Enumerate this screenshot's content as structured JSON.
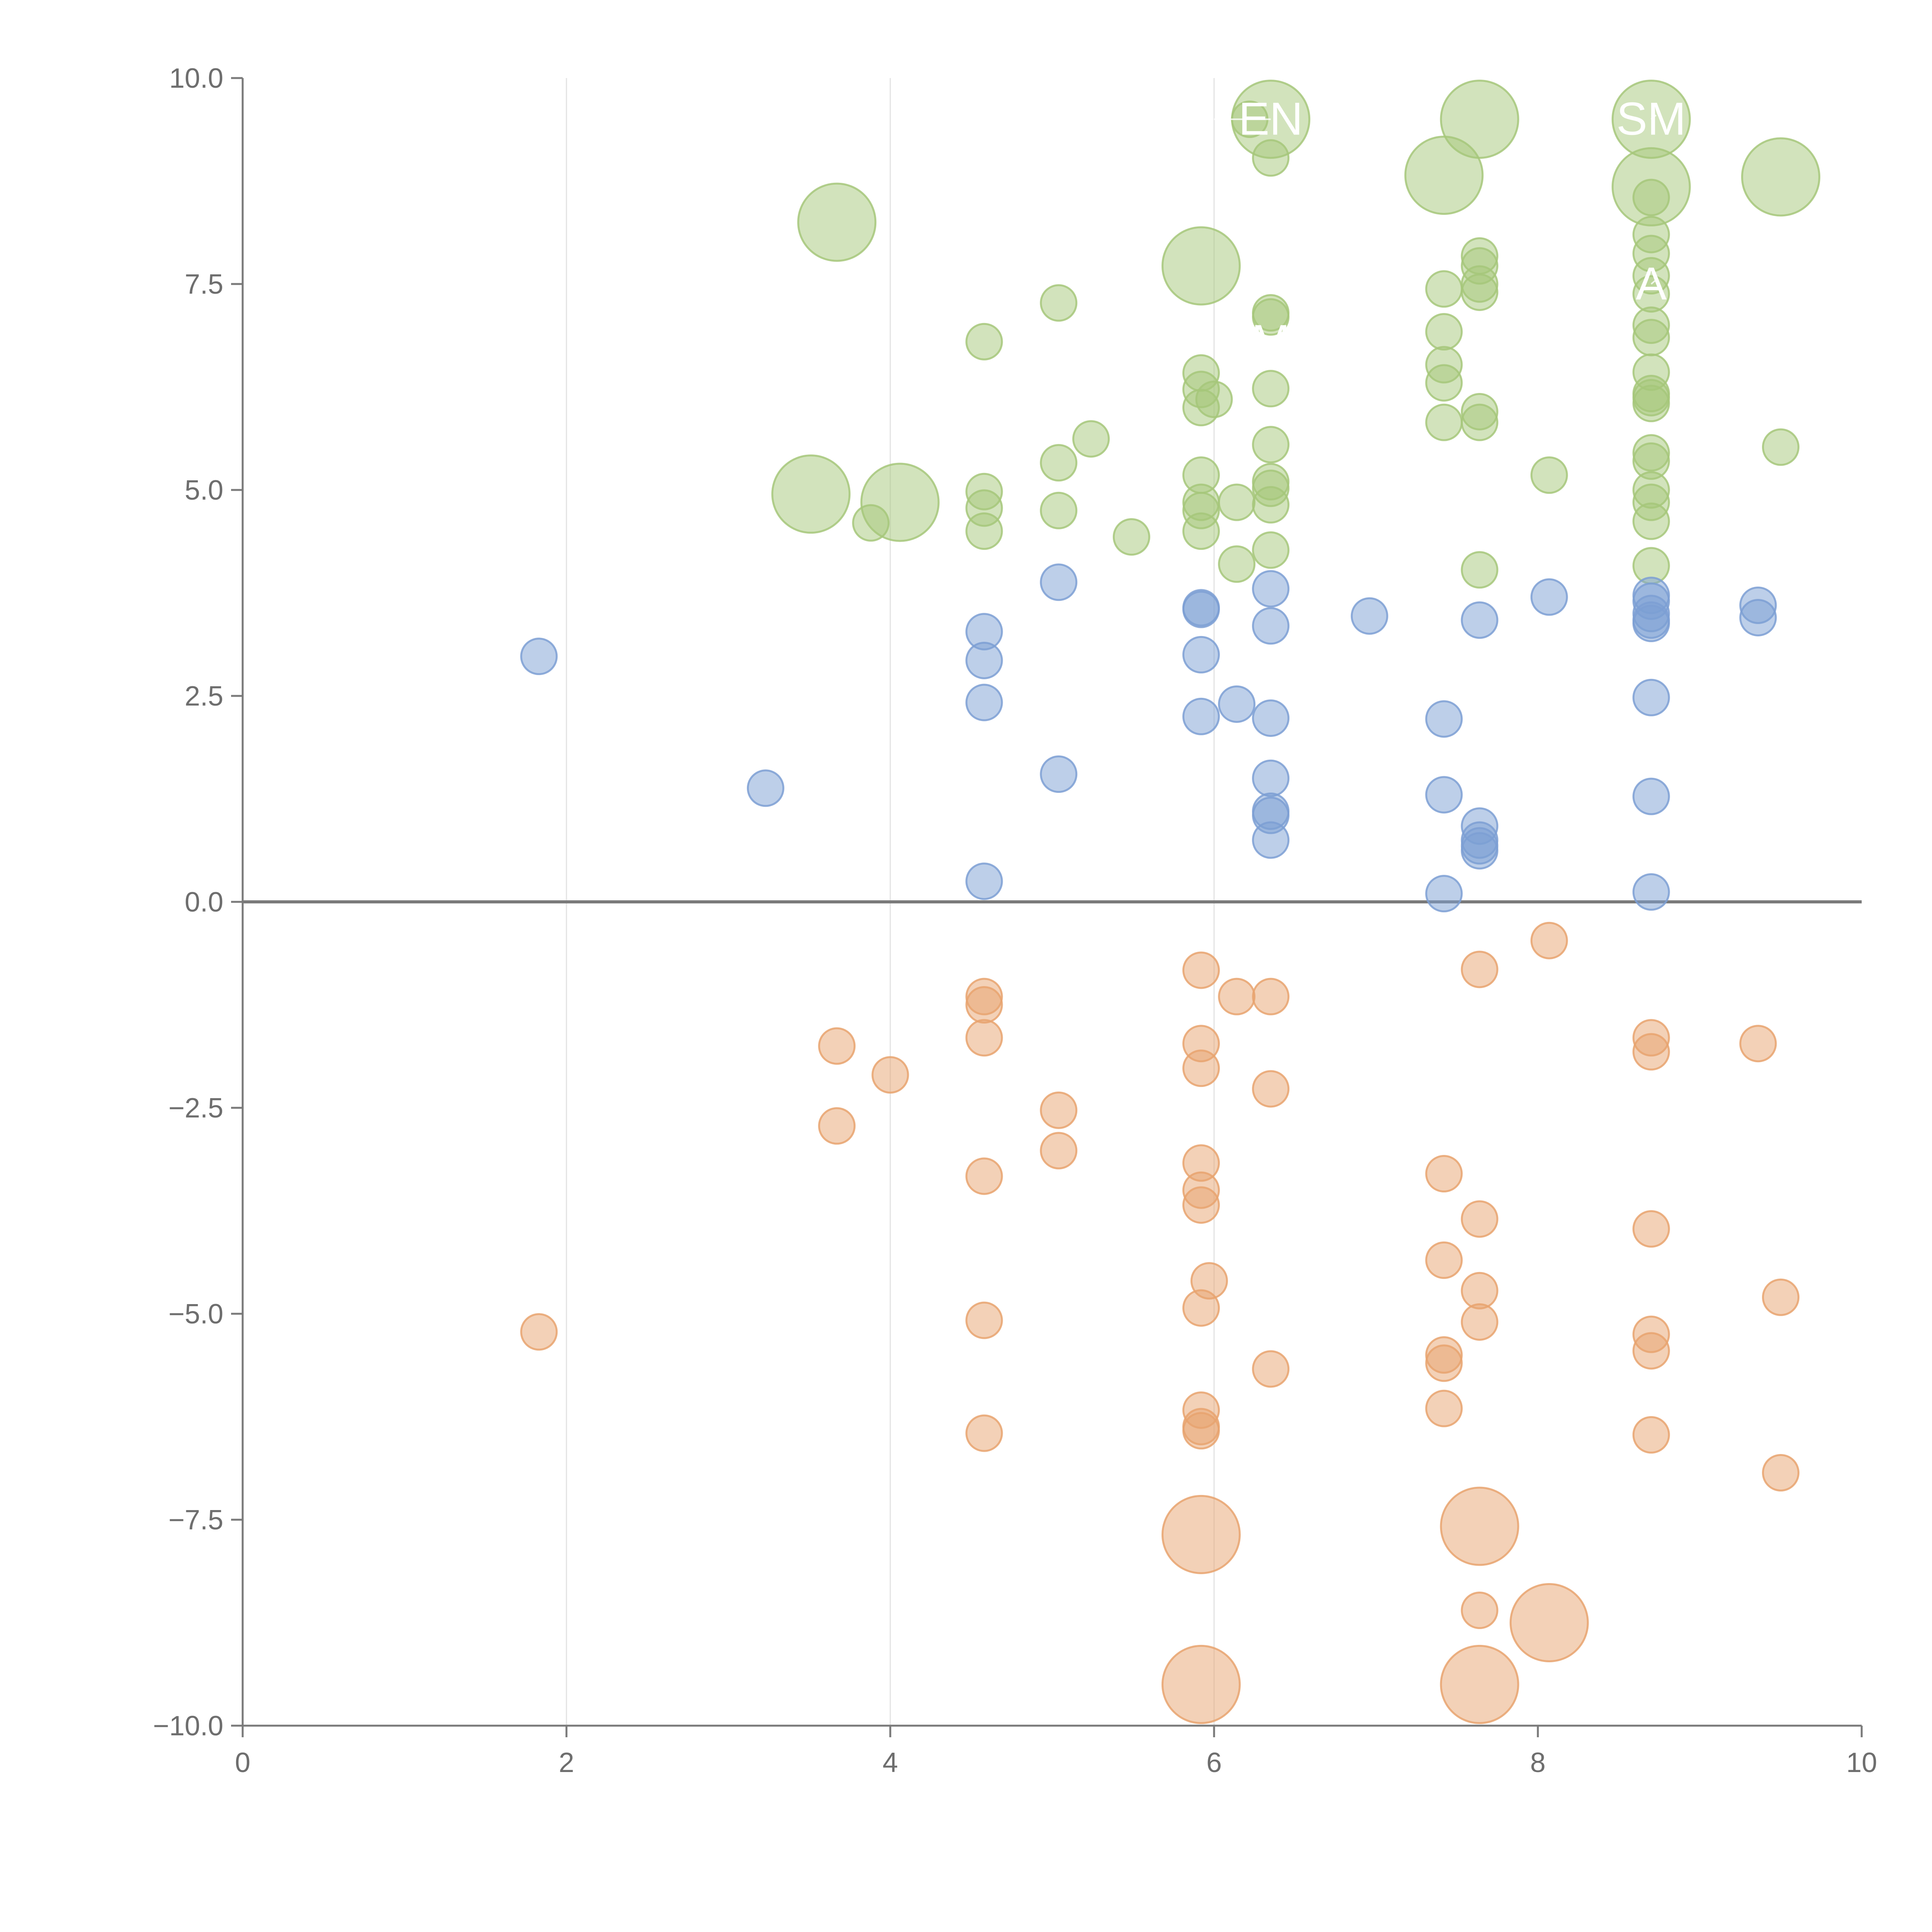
{
  "chart_data": {
    "type": "scatter",
    "title": "",
    "xlabel": "",
    "ylabel": "",
    "xlim": [
      0,
      10
    ],
    "ylim": [
      -10,
      10
    ],
    "x_ticks": [
      "0",
      "2",
      "4",
      "6",
      "8",
      "10"
    ],
    "y_ticks": [
      "10.0",
      "7.5",
      "5.0",
      "2.5",
      "0.0",
      "−2.5",
      "−5.0",
      "−7.5",
      "−10.0"
    ],
    "x_tick_values": [
      0,
      2,
      4,
      6,
      8,
      10
    ],
    "y_tick_values": [
      10,
      7.5,
      5,
      2.5,
      0,
      -2.5,
      -5,
      -7.5,
      -10
    ],
    "vertical_gridlines": [
      2,
      4,
      6
    ],
    "grid": "vertical-only",
    "zero_line": true,
    "colors": {
      "green": "#a6c77a",
      "blue": "#7c9fd4",
      "orange": "#e8a36f"
    },
    "size_scale": {
      "small": 1,
      "medium": 2,
      "large": 3
    },
    "series": [
      {
        "name": "green",
        "color": "#a6c77a",
        "points": [
          [
            3.67,
            8.25,
            3
          ],
          [
            3.51,
            4.95,
            3
          ],
          [
            4.06,
            4.85,
            3
          ],
          [
            3.88,
            4.6,
            1
          ],
          [
            4.58,
            6.8,
            1
          ],
          [
            4.58,
            4.98,
            1
          ],
          [
            4.58,
            4.78,
            1
          ],
          [
            4.58,
            4.5,
            1
          ],
          [
            5.04,
            7.27,
            1
          ],
          [
            5.04,
            5.33,
            1
          ],
          [
            5.04,
            4.75,
            1
          ],
          [
            5.24,
            5.62,
            1
          ],
          [
            5.49,
            4.43,
            1
          ],
          [
            5.92,
            7.72,
            3
          ],
          [
            5.92,
            6.42,
            1
          ],
          [
            5.92,
            6.22,
            1
          ],
          [
            5.92,
            6.0,
            1
          ],
          [
            6.0,
            6.1,
            1
          ],
          [
            5.92,
            5.18,
            1
          ],
          [
            5.92,
            4.85,
            1
          ],
          [
            5.92,
            4.75,
            1
          ],
          [
            5.92,
            4.5,
            1
          ],
          [
            6.14,
            4.85,
            1
          ],
          [
            6.14,
            4.1,
            1
          ],
          [
            6.22,
            9.5,
            1
          ],
          [
            6.35,
            9.5,
            3
          ],
          [
            6.35,
            9.03,
            1
          ],
          [
            6.35,
            7.15,
            1
          ],
          [
            6.35,
            7.1,
            1
          ],
          [
            6.35,
            6.23,
            1
          ],
          [
            6.35,
            5.55,
            1
          ],
          [
            6.35,
            5.1,
            1
          ],
          [
            6.35,
            5.02,
            1
          ],
          [
            6.35,
            4.82,
            1
          ],
          [
            6.35,
            4.27,
            1
          ],
          [
            7.42,
            8.82,
            3
          ],
          [
            7.42,
            7.44,
            1
          ],
          [
            7.42,
            6.92,
            1
          ],
          [
            7.42,
            6.52,
            1
          ],
          [
            7.42,
            6.3,
            1
          ],
          [
            7.42,
            5.82,
            1
          ],
          [
            7.64,
            9.5,
            3
          ],
          [
            7.64,
            7.84,
            1
          ],
          [
            7.64,
            7.72,
            1
          ],
          [
            7.64,
            7.5,
            1
          ],
          [
            7.64,
            7.4,
            1
          ],
          [
            7.64,
            5.95,
            1
          ],
          [
            7.64,
            5.82,
            1
          ],
          [
            7.64,
            4.03,
            1
          ],
          [
            8.07,
            5.18,
            1
          ],
          [
            8.7,
            9.5,
            3
          ],
          [
            8.7,
            8.68,
            3
          ],
          [
            8.7,
            8.55,
            1
          ],
          [
            8.7,
            8.1,
            1
          ],
          [
            8.7,
            7.87,
            1
          ],
          [
            8.7,
            7.6,
            1
          ],
          [
            8.7,
            7.38,
            1
          ],
          [
            8.7,
            7.0,
            1
          ],
          [
            8.7,
            6.85,
            1
          ],
          [
            8.7,
            6.43,
            1
          ],
          [
            8.7,
            6.17,
            1
          ],
          [
            8.7,
            6.12,
            1
          ],
          [
            8.7,
            6.05,
            1
          ],
          [
            8.7,
            5.45,
            1
          ],
          [
            8.7,
            5.35,
            1
          ],
          [
            8.7,
            5.0,
            1
          ],
          [
            8.7,
            4.85,
            1
          ],
          [
            8.7,
            4.62,
            1
          ],
          [
            8.7,
            4.08,
            1
          ],
          [
            9.5,
            8.8,
            3
          ],
          [
            9.5,
            5.52,
            1
          ]
        ]
      },
      {
        "name": "blue",
        "color": "#7c9fd4",
        "points": [
          [
            1.83,
            2.98,
            1
          ],
          [
            3.23,
            1.38,
            1
          ],
          [
            4.58,
            3.28,
            1
          ],
          [
            4.58,
            2.93,
            1
          ],
          [
            4.58,
            2.42,
            1
          ],
          [
            4.58,
            0.25,
            1
          ],
          [
            5.04,
            3.88,
            1
          ],
          [
            5.04,
            1.55,
            1
          ],
          [
            5.92,
            3.57,
            1
          ],
          [
            5.92,
            3.55,
            1
          ],
          [
            5.92,
            3.0,
            1
          ],
          [
            5.92,
            2.25,
            1
          ],
          [
            6.14,
            2.4,
            1
          ],
          [
            6.35,
            3.8,
            1
          ],
          [
            6.35,
            3.35,
            1
          ],
          [
            6.35,
            2.23,
            1
          ],
          [
            6.35,
            1.5,
            1
          ],
          [
            6.35,
            1.1,
            1
          ],
          [
            6.35,
            1.05,
            1
          ],
          [
            6.35,
            0.75,
            1
          ],
          [
            6.96,
            3.47,
            1
          ],
          [
            7.42,
            2.22,
            1
          ],
          [
            7.42,
            1.3,
            1
          ],
          [
            7.42,
            0.1,
            1
          ],
          [
            7.64,
            3.42,
            1
          ],
          [
            7.64,
            0.92,
            1
          ],
          [
            7.64,
            0.75,
            1
          ],
          [
            7.64,
            0.68,
            1
          ],
          [
            7.64,
            0.62,
            1
          ],
          [
            8.07,
            3.7,
            1
          ],
          [
            8.7,
            3.72,
            1
          ],
          [
            8.7,
            3.65,
            1
          ],
          [
            8.7,
            3.5,
            1
          ],
          [
            8.7,
            3.42,
            1
          ],
          [
            8.7,
            3.38,
            1
          ],
          [
            8.7,
            2.48,
            1
          ],
          [
            8.7,
            1.28,
            1
          ],
          [
            8.7,
            0.12,
            1
          ],
          [
            9.36,
            3.6,
            1
          ],
          [
            9.36,
            3.45,
            1
          ]
        ]
      },
      {
        "name": "orange",
        "color": "#e8a36f",
        "points": [
          [
            1.83,
            -5.22,
            1
          ],
          [
            3.67,
            -1.75,
            1
          ],
          [
            3.67,
            -2.72,
            1
          ],
          [
            4.0,
            -2.1,
            1
          ],
          [
            4.58,
            -1.15,
            1
          ],
          [
            4.58,
            -1.25,
            1
          ],
          [
            4.58,
            -1.65,
            1
          ],
          [
            4.58,
            -3.33,
            1
          ],
          [
            4.58,
            -5.08,
            1
          ],
          [
            4.58,
            -6.45,
            1
          ],
          [
            5.04,
            -2.53,
            1
          ],
          [
            5.04,
            -3.02,
            1
          ],
          [
            5.92,
            -0.83,
            1
          ],
          [
            5.92,
            -1.72,
            1
          ],
          [
            5.92,
            -2.02,
            1
          ],
          [
            5.92,
            -3.17,
            1
          ],
          [
            5.92,
            -3.5,
            1
          ],
          [
            5.92,
            -3.68,
            1
          ],
          [
            5.97,
            -4.6,
            1
          ],
          [
            5.92,
            -4.93,
            1
          ],
          [
            5.92,
            -6.17,
            1
          ],
          [
            5.92,
            -6.37,
            1
          ],
          [
            5.92,
            -6.42,
            1
          ],
          [
            5.92,
            -7.68,
            3
          ],
          [
            5.92,
            -9.5,
            3
          ],
          [
            6.14,
            -1.15,
            1
          ],
          [
            6.35,
            -1.15,
            1
          ],
          [
            6.35,
            -2.27,
            1
          ],
          [
            6.35,
            -5.67,
            1
          ],
          [
            7.42,
            -3.3,
            1
          ],
          [
            7.42,
            -4.35,
            1
          ],
          [
            7.42,
            -5.5,
            1
          ],
          [
            7.42,
            -5.6,
            1
          ],
          [
            7.42,
            -6.15,
            1
          ],
          [
            7.64,
            -0.82,
            1
          ],
          [
            7.64,
            -3.85,
            1
          ],
          [
            7.64,
            -4.72,
            1
          ],
          [
            7.64,
            -5.1,
            1
          ],
          [
            7.64,
            -7.58,
            3
          ],
          [
            7.64,
            -8.6,
            1
          ],
          [
            7.64,
            -9.5,
            3
          ],
          [
            8.07,
            -0.47,
            1
          ],
          [
            8.07,
            -8.75,
            3
          ],
          [
            8.7,
            -1.65,
            1
          ],
          [
            8.7,
            -1.82,
            1
          ],
          [
            8.7,
            -3.97,
            1
          ],
          [
            8.7,
            -5.25,
            1
          ],
          [
            8.7,
            -5.45,
            1
          ],
          [
            8.7,
            -6.47,
            1
          ],
          [
            9.36,
            -1.72,
            1
          ],
          [
            9.5,
            -4.8,
            1
          ],
          [
            9.5,
            -6.93,
            1
          ]
        ]
      }
    ],
    "annotations": [
      {
        "text": "EN",
        "x": 6.35,
        "y": 9.5,
        "anchor": [
          6.0,
          9.5
        ]
      },
      {
        "text": "SM",
        "x": 8.7,
        "y": 9.5,
        "anchor": [
          8.73,
          9.55
        ]
      },
      {
        "text": "A",
        "x": 8.7,
        "y": 7.5,
        "anchor": [
          8.73,
          7.55
        ]
      },
      {
        "text": "M",
        "x": 6.35,
        "y": 6.8,
        "anchor": [
          6.38,
          6.85
        ]
      }
    ]
  }
}
